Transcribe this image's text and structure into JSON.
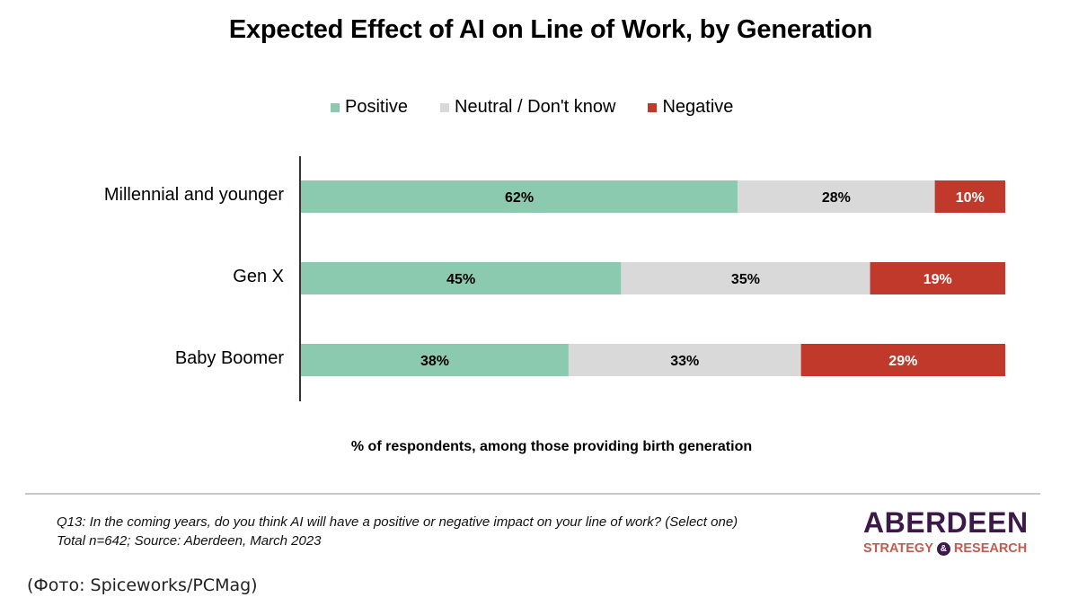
{
  "chart_data": {
    "type": "bar",
    "orientation": "horizontal",
    "stacked": true,
    "title": "Expected Effect of AI on Line of Work, by Generation",
    "xlabel": "% of respondents, among those providing birth generation",
    "ylabel": "",
    "categories": [
      "Millennial and younger",
      "Gen X",
      "Baby Boomer"
    ],
    "series": [
      {
        "name": "Positive",
        "color": "#8ccab0",
        "label_color": "#000000",
        "values": [
          62,
          45,
          38
        ]
      },
      {
        "name": "Neutral / Don't know",
        "color": "#d9d9d9",
        "label_color": "#000000",
        "values": [
          28,
          35,
          33
        ]
      },
      {
        "name": "Negative",
        "color": "#c0392b",
        "label_color": "#ffffff",
        "values": [
          10,
          19,
          29
        ]
      }
    ],
    "value_suffix": "%",
    "legend_position": "top-center",
    "grid": false
  },
  "footer": {
    "question": "Q13: In the coming years, do you think AI will have a positive or negative impact on your line of work? (Select one)",
    "source": "Total n=642; Source: Aberdeen, March 2023"
  },
  "logo": {
    "main": "ABERDEEN",
    "sub_left": "STRATEGY",
    "sub_amp": "&",
    "sub_right": "RESEARCH"
  },
  "credit": "(Фото: Spiceworks/PCMag)"
}
